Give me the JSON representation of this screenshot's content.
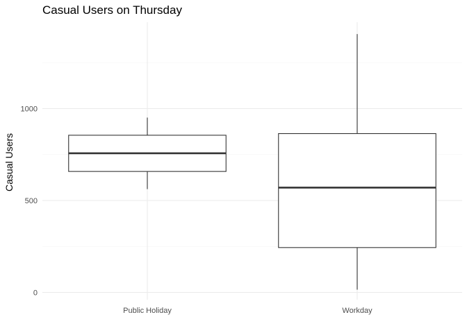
{
  "chart_data": {
    "type": "boxplot",
    "title": "Casual Users on Thursday",
    "xlabel": "",
    "ylabel": "Casual Users",
    "categories": [
      "Public Holiday",
      "Workday"
    ],
    "boxes": [
      {
        "category": "Public Holiday",
        "min": 562,
        "q1": 658,
        "median": 757,
        "q3": 855,
        "max": 951
      },
      {
        "category": "Workday",
        "min": 15,
        "q1": 244,
        "median": 570,
        "q3": 864,
        "max": 1405
      }
    ],
    "ylim": [
      -15,
      1480
    ],
    "yticks": [
      0,
      500,
      1000
    ],
    "ytick_labels": [
      "0",
      "500",
      "1000"
    ],
    "grid": true,
    "legend": "none"
  }
}
